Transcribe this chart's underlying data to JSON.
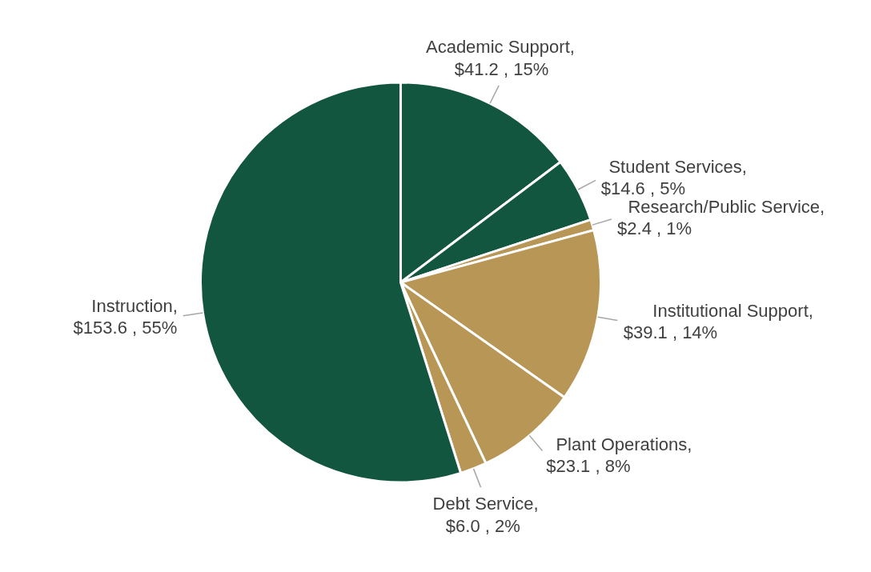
{
  "chart_data": {
    "type": "pie",
    "categories": [
      "Academic Support",
      "Student Services",
      "Research/Public Service",
      "Institutional Support",
      "Plant Operations",
      "Debt Service",
      "Instruction"
    ],
    "values": [
      41.2,
      14.6,
      2.4,
      39.1,
      23.1,
      6.0,
      153.6
    ],
    "value_labels": [
      "$41.2 , 15%",
      "$14.6 , 5%",
      "$2.4 , 1%",
      "$39.1 , 14%",
      "$23.1 , 8%",
      "$6.0 , 2%",
      "$153.6 , 55%"
    ],
    "annotations": [
      ",",
      ",",
      ",",
      ",",
      ",",
      ",",
      ","
    ],
    "colors": [
      "#12563f",
      "#12563f",
      "#b89656",
      "#b89656",
      "#b89656",
      "#b89656",
      "#12563f"
    ]
  }
}
